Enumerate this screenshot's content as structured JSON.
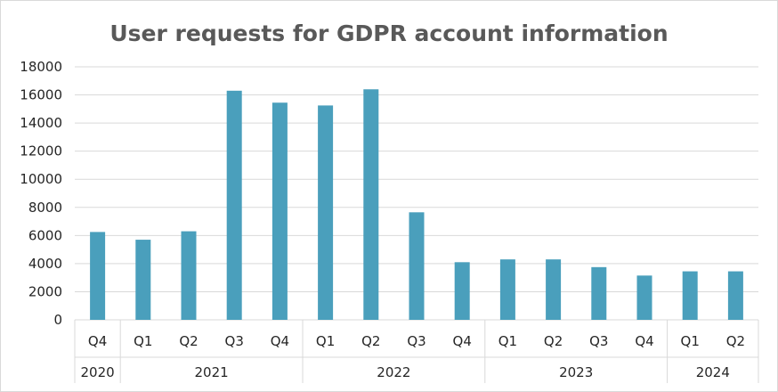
{
  "chart_data": {
    "type": "bar",
    "title": "User requests for GDPR account information",
    "xlabel": "",
    "ylabel": "",
    "ylim": [
      0,
      18000
    ],
    "y_ticks": [
      "0",
      "2000",
      "4000",
      "6000",
      "8000",
      "10000",
      "12000",
      "14000",
      "16000",
      "18000"
    ],
    "categories": [
      "Q4",
      "Q1",
      "Q2",
      "Q3",
      "Q4",
      "Q1",
      "Q2",
      "Q3",
      "Q4",
      "Q1",
      "Q2",
      "Q3",
      "Q4",
      "Q1",
      "Q2"
    ],
    "groups": [
      {
        "label": "2020",
        "count": 1
      },
      {
        "label": "2021",
        "count": 4
      },
      {
        "label": "2022",
        "count": 4
      },
      {
        "label": "2023",
        "count": 4
      },
      {
        "label": "2024",
        "count": 2
      }
    ],
    "values": [
      6250,
      5700,
      6300,
      16300,
      15450,
      15250,
      16400,
      7650,
      4100,
      4300,
      4300,
      3750,
      3150,
      3450,
      3450
    ],
    "bar_color": "#4a9fbc",
    "grid": true,
    "legend": "none"
  }
}
